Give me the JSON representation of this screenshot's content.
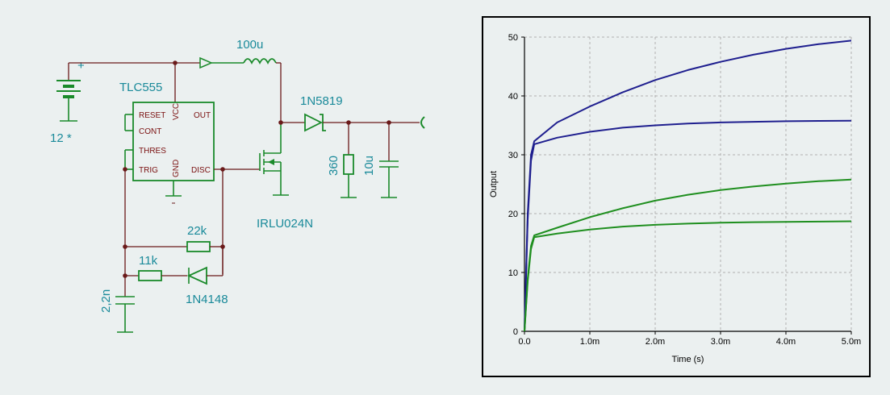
{
  "schematic": {
    "battery_label": "12 *",
    "battery_plus": "+",
    "timer_label": "TLC555",
    "pins": {
      "reset": "RESET",
      "cont": "CONT",
      "thres": "THRES",
      "trig": "TRIG",
      "vcc": "VCC",
      "gnd": "GND",
      "out": "OUT",
      "disc": "DISC"
    },
    "inductor_label": "100u",
    "diode_label": "1N5819",
    "resistor_load_label": "360",
    "cap_out_label": "10u",
    "mosfet_label": "IRLU024N",
    "resistor_22k_label": "22k",
    "resistor_11k_label": "11k",
    "diode_small_label": "1N4148",
    "cap_timing_label": "2,2n"
  },
  "chart_data": {
    "type": "line",
    "xlabel": "Time (s)",
    "ylabel": "Output",
    "xlim": [
      0,
      0.005
    ],
    "ylim": [
      0,
      50
    ],
    "x_ticks": [
      "0.0",
      "1.0m",
      "2.0m",
      "3.0m",
      "4.0m",
      "5.0m"
    ],
    "y_ticks": [
      "0",
      "10",
      "20",
      "30",
      "40",
      "50"
    ],
    "grid": true,
    "colors": {
      "blue": "#1f1f8f",
      "green": "#1f8f1f"
    },
    "series": [
      {
        "color": "blue",
        "x": [
          0,
          5e-05,
          0.0001,
          0.00015,
          0.0005,
          0.001,
          0.0015,
          0.002,
          0.0025,
          0.003,
          0.0035,
          0.004,
          0.0045,
          0.005
        ],
        "values": [
          0,
          20,
          30,
          32.3,
          35.5,
          38.2,
          40.6,
          42.7,
          44.4,
          45.8,
          47.0,
          48.0,
          48.8,
          49.4
        ]
      },
      {
        "color": "blue",
        "x": [
          0,
          5e-05,
          0.0001,
          0.00015,
          0.0005,
          0.001,
          0.0015,
          0.002,
          0.0025,
          0.003,
          0.0035,
          0.004,
          0.0045,
          0.005
        ],
        "values": [
          0,
          19,
          29,
          31.8,
          32.9,
          33.9,
          34.6,
          35.0,
          35.3,
          35.5,
          35.6,
          35.7,
          35.75,
          35.8
        ]
      },
      {
        "color": "green",
        "x": [
          0,
          5e-05,
          0.0001,
          0.00015,
          0.0005,
          0.001,
          0.0015,
          0.002,
          0.0025,
          0.003,
          0.0035,
          0.004,
          0.0045,
          0.005
        ],
        "values": [
          0,
          9,
          14.5,
          16.3,
          17.6,
          19.4,
          20.9,
          22.2,
          23.2,
          24.0,
          24.6,
          25.1,
          25.5,
          25.8
        ]
      },
      {
        "color": "green",
        "x": [
          0,
          5e-05,
          0.0001,
          0.00015,
          0.0005,
          0.001,
          0.0015,
          0.002,
          0.0025,
          0.003,
          0.0035,
          0.004,
          0.0045,
          0.005
        ],
        "values": [
          0,
          8.5,
          14,
          16.0,
          16.6,
          17.3,
          17.8,
          18.1,
          18.3,
          18.45,
          18.55,
          18.6,
          18.65,
          18.7
        ]
      }
    ]
  }
}
